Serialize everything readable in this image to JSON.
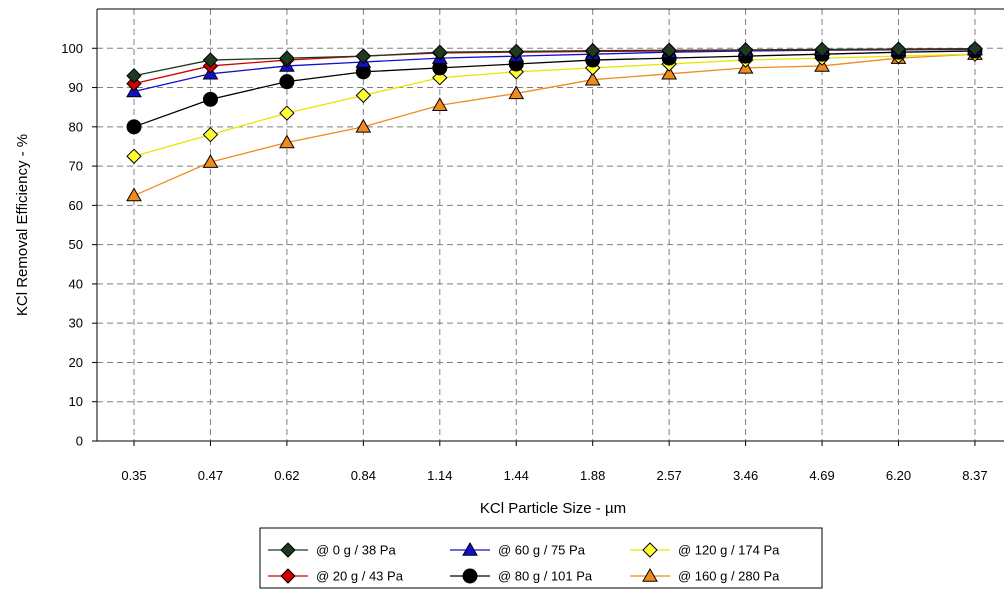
{
  "chart_data": {
    "type": "line",
    "xlabel": "KCl Particle Size - µm",
    "ylabel": "KCl Removal Efficiency - %",
    "ylim": [
      0,
      110
    ],
    "yticks": [
      0,
      10,
      20,
      30,
      40,
      50,
      60,
      70,
      80,
      90,
      100
    ],
    "grid": true,
    "x_scale": "categorical",
    "categories": [
      "0.35",
      "0.47",
      "0.62",
      "0.84",
      "1.14",
      "1.44",
      "1.88",
      "2.57",
      "3.46",
      "4.69",
      "6.20",
      "8.37"
    ],
    "legend_position": "bottom",
    "series": [
      {
        "name": "@ 0 g / 38 Pa",
        "marker": "diamond",
        "color": "#1f3a1f",
        "line_color": "#1f3a1f",
        "values": [
          93,
          97,
          97.5,
          98,
          99,
          99.2,
          99.4,
          99.5,
          99.6,
          99.7,
          99.8,
          99.9
        ]
      },
      {
        "name": "@ 20 g / 43 Pa",
        "marker": "diamond",
        "color": "#cc0000",
        "line_color": "#cc0000",
        "values": [
          91,
          95.5,
          97,
          98,
          98.8,
          99,
          99.2,
          99.3,
          99.5,
          99.6,
          99.7,
          99.8
        ]
      },
      {
        "name": "@ 60 g / 75 Pa",
        "marker": "triangle",
        "color": "#1010cc",
        "line_color": "#1010cc",
        "values": [
          89,
          93.5,
          95.5,
          96.5,
          97.5,
          98,
          98.5,
          99,
          99.3,
          99.5,
          99.6,
          99.7
        ]
      },
      {
        "name": "@ 80 g / 101 Pa",
        "marker": "circle",
        "color": "#000000",
        "line_color": "#000000",
        "values": [
          80,
          87,
          91.5,
          94,
          95,
          96,
          97,
          97.5,
          98,
          98.5,
          99,
          99.3
        ]
      },
      {
        "name": "@ 120 g / 174 Pa",
        "marker": "diamond",
        "color": "#ffff33",
        "line_color": "#e6e600",
        "values": [
          72.5,
          78,
          83.5,
          88,
          92.5,
          94,
          95,
          96,
          97,
          97.5,
          98,
          98.5
        ]
      },
      {
        "name": "@ 160 g / 280 Pa",
        "marker": "triangle",
        "color": "#f08c1e",
        "line_color": "#f08c1e",
        "values": [
          62.5,
          71,
          76,
          80,
          85.5,
          88.5,
          92,
          93.5,
          95,
          95.5,
          97.5,
          98.5
        ]
      }
    ]
  }
}
